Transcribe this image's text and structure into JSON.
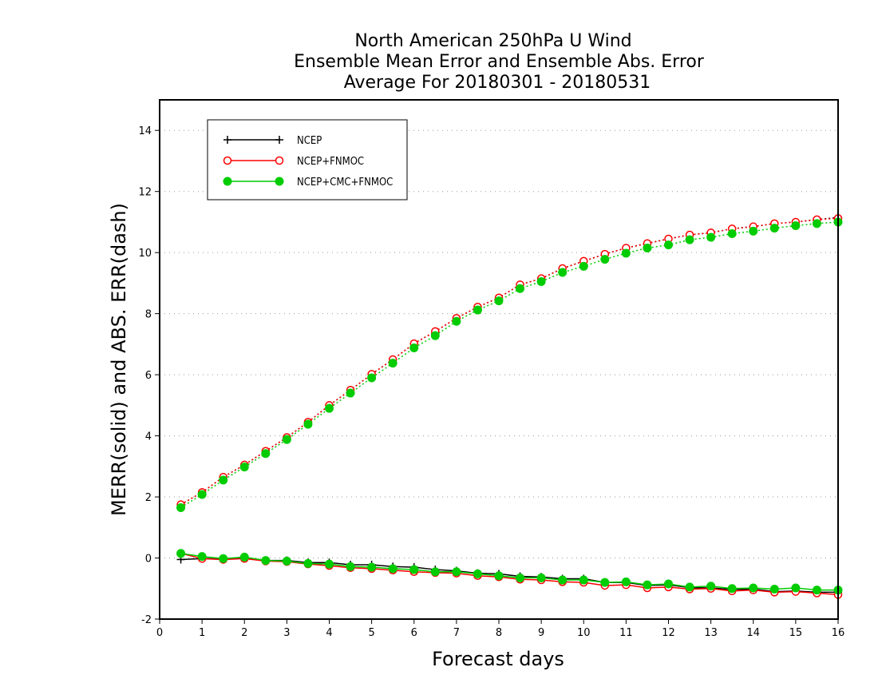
{
  "chart_data": {
    "type": "line",
    "title_lines": [
      "North American 250hPa U Wind",
      "Ensemble Mean Error and Ensemble Abs. Error",
      "Average For 20180301 - 20180531"
    ],
    "xlabel": "Forecast days",
    "ylabel": "MERR(solid) and ABS. ERR(dash)",
    "xlim": [
      0,
      16
    ],
    "ylim": [
      -2,
      15
    ],
    "xticks": [
      0,
      1,
      2,
      3,
      4,
      5,
      6,
      7,
      8,
      9,
      10,
      11,
      12,
      13,
      14,
      15,
      16
    ],
    "yticks": [
      -2,
      0,
      2,
      4,
      6,
      8,
      10,
      12,
      14
    ],
    "grid": true,
    "legend_position": "top-left",
    "x": [
      0.5,
      1,
      1.5,
      2,
      2.5,
      3,
      3.5,
      4,
      4.5,
      5,
      5.5,
      6,
      6.5,
      7,
      7.5,
      8,
      8.5,
      9,
      9.5,
      10,
      10.5,
      11,
      11.5,
      12,
      12.5,
      13,
      13.5,
      14,
      14.5,
      15,
      15.5,
      16
    ],
    "series": [
      {
        "name": "NCEP",
        "color": "#000000",
        "marker": "plus",
        "merr": [
          -0.05,
          -0.02,
          -0.03,
          0.0,
          -0.08,
          -0.08,
          -0.15,
          -0.15,
          -0.22,
          -0.22,
          -0.28,
          -0.3,
          -0.38,
          -0.42,
          -0.5,
          -0.52,
          -0.6,
          -0.62,
          -0.68,
          -0.68,
          -0.8,
          -0.8,
          -0.9,
          -0.88,
          -0.97,
          -0.98,
          -1.03,
          -1.02,
          -1.1,
          -1.08,
          -1.12,
          -1.12
        ],
        "abs_err": [
          1.75,
          2.15,
          2.65,
          3.05,
          3.5,
          3.95,
          4.45,
          5.0,
          5.5,
          6.02,
          6.5,
          7.02,
          7.42,
          7.85,
          8.22,
          8.52,
          8.95,
          9.15,
          9.48,
          9.72,
          9.95,
          10.15,
          10.3,
          10.45,
          10.58,
          10.65,
          10.78,
          10.85,
          10.95,
          11.0,
          11.08,
          11.15
        ]
      },
      {
        "name": "NCEP+FNMOC",
        "color": "#ff0000",
        "marker": "open-circle",
        "merr": [
          0.15,
          -0.02,
          -0.05,
          -0.02,
          -0.1,
          -0.12,
          -0.2,
          -0.25,
          -0.32,
          -0.35,
          -0.4,
          -0.45,
          -0.48,
          -0.5,
          -0.58,
          -0.62,
          -0.7,
          -0.72,
          -0.78,
          -0.8,
          -0.9,
          -0.88,
          -0.98,
          -0.95,
          -1.02,
          -1.0,
          -1.08,
          -1.05,
          -1.12,
          -1.1,
          -1.15,
          -1.2
        ],
        "abs_err": [
          1.75,
          2.15,
          2.65,
          3.05,
          3.5,
          3.95,
          4.45,
          5.0,
          5.5,
          6.02,
          6.5,
          7.02,
          7.42,
          7.85,
          8.22,
          8.52,
          8.95,
          9.15,
          9.48,
          9.72,
          9.95,
          10.15,
          10.3,
          10.45,
          10.58,
          10.65,
          10.78,
          10.85,
          10.95,
          11.0,
          11.08,
          11.12
        ]
      },
      {
        "name": "NCEP+CMC+FNMOC",
        "color": "#00cc00",
        "marker": "filled-circle",
        "merr": [
          0.15,
          0.05,
          -0.02,
          0.03,
          -0.08,
          -0.1,
          -0.18,
          -0.2,
          -0.28,
          -0.3,
          -0.35,
          -0.38,
          -0.45,
          -0.45,
          -0.52,
          -0.58,
          -0.65,
          -0.65,
          -0.72,
          -0.72,
          -0.8,
          -0.78,
          -0.88,
          -0.85,
          -0.95,
          -0.92,
          -1.0,
          -0.98,
          -1.02,
          -0.98,
          -1.05,
          -1.05
        ],
        "abs_err": [
          1.65,
          2.08,
          2.55,
          2.98,
          3.42,
          3.88,
          4.38,
          4.9,
          5.4,
          5.9,
          6.38,
          6.88,
          7.28,
          7.75,
          8.12,
          8.42,
          8.82,
          9.05,
          9.35,
          9.55,
          9.78,
          9.98,
          10.15,
          10.25,
          10.42,
          10.5,
          10.62,
          10.7,
          10.8,
          10.88,
          10.95,
          11.0
        ]
      }
    ]
  }
}
